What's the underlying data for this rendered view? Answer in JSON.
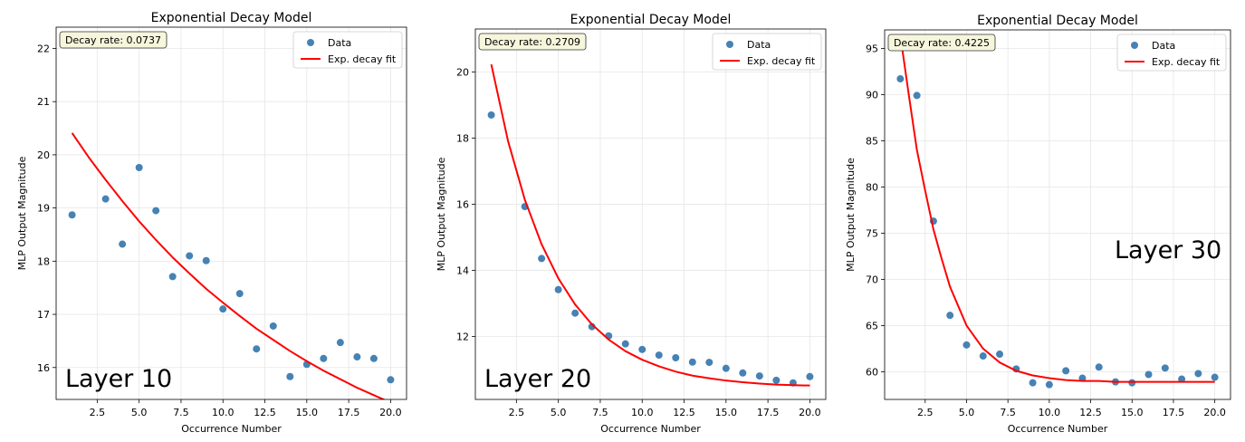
{
  "chart_data": [
    {
      "type": "scatter",
      "title": "Exponential Decay Model",
      "xlabel": "Occurrence Number",
      "ylabel": "MLP Output Magnitude",
      "xlim": [
        0.05,
        20.95
      ],
      "ylim": [
        15.4,
        22.4
      ],
      "xticks": [
        2.5,
        5.0,
        7.5,
        10.0,
        12.5,
        15.0,
        17.5,
        20.0
      ],
      "xtick_labels": [
        "2.5",
        "5.0",
        "7.5",
        "10.0",
        "12.5",
        "15.0",
        "17.5",
        "20.0"
      ],
      "yticks": [
        16,
        17,
        18,
        19,
        20,
        21,
        22
      ],
      "ytick_labels": [
        "16",
        "17",
        "18",
        "19",
        "20",
        "21",
        "22"
      ],
      "grid": true,
      "legend_position": "top-right",
      "annotation": "Decay rate: 0.0737",
      "overlay_label": "Layer 10",
      "overlay_position": "bottom-left",
      "series": [
        {
          "name": "Data",
          "kind": "scatter",
          "color": "#4682b4",
          "x": [
            1,
            3,
            4,
            5,
            6,
            7,
            8,
            9,
            10,
            11,
            12,
            13,
            14,
            15,
            16,
            17,
            18,
            19,
            20
          ],
          "y": [
            18.87,
            19.17,
            18.32,
            19.76,
            18.95,
            17.71,
            18.1,
            18.01,
            17.1,
            17.39,
            16.35,
            16.78,
            15.83,
            16.06,
            16.17,
            16.47,
            16.2,
            16.17,
            15.77
          ]
        },
        {
          "name": "Exp. decay fit",
          "kind": "line",
          "color": "#ff0000",
          "x": [
            1,
            2,
            3,
            4,
            5,
            6,
            7,
            8,
            9,
            10,
            11,
            12,
            13,
            14,
            15,
            16,
            17,
            18,
            19,
            20
          ],
          "y": [
            20.41,
            19.95,
            19.53,
            19.13,
            18.75,
            18.4,
            18.07,
            17.77,
            17.48,
            17.22,
            16.97,
            16.73,
            16.52,
            16.31,
            16.12,
            15.94,
            15.78,
            15.62,
            15.48,
            15.34
          ]
        }
      ]
    },
    {
      "type": "scatter",
      "title": "Exponential Decay Model",
      "xlabel": "Occurrence Number",
      "ylabel": "MLP Output Magnitude",
      "xlim": [
        0.05,
        20.95
      ],
      "ylim": [
        10.1,
        21.3
      ],
      "xticks": [
        2.5,
        5.0,
        7.5,
        10.0,
        12.5,
        15.0,
        17.5,
        20.0
      ],
      "xtick_labels": [
        "2.5",
        "5.0",
        "7.5",
        "10.0",
        "12.5",
        "15.0",
        "17.5",
        "20.0"
      ],
      "yticks": [
        12,
        14,
        16,
        18,
        20
      ],
      "ytick_labels": [
        "12",
        "14",
        "16",
        "18",
        "20"
      ],
      "grid": true,
      "legend_position": "top-right",
      "annotation": "Decay rate: 0.2709",
      "overlay_label": "Layer 20",
      "overlay_position": "bottom-left",
      "series": [
        {
          "name": "Data",
          "kind": "scatter",
          "color": "#4682b4",
          "x": [
            1,
            3,
            4,
            5,
            6,
            7,
            8,
            9,
            10,
            11,
            12,
            13,
            14,
            15,
            16,
            17,
            18,
            19,
            20
          ],
          "y": [
            18.7,
            15.93,
            14.36,
            13.42,
            12.71,
            12.3,
            12.02,
            11.78,
            11.61,
            11.44,
            11.36,
            11.23,
            11.22,
            11.04,
            10.9,
            10.81,
            10.68,
            10.6,
            10.79
          ]
        },
        {
          "name": "Exp. decay fit",
          "kind": "line",
          "color": "#ff0000",
          "x": [
            1,
            2,
            3,
            4,
            5,
            6,
            7,
            8,
            9,
            10,
            11,
            12,
            13,
            14,
            15,
            16,
            17,
            18,
            19,
            20
          ],
          "y": [
            20.23,
            17.91,
            16.14,
            14.79,
            13.76,
            12.97,
            12.37,
            11.91,
            11.56,
            11.3,
            11.1,
            10.94,
            10.82,
            10.74,
            10.67,
            10.62,
            10.58,
            10.55,
            10.53,
            10.52
          ]
        }
      ]
    },
    {
      "type": "scatter",
      "title": "Exponential Decay Model",
      "xlabel": "Occurrence Number",
      "ylabel": "MLP Output Magnitude",
      "xlim": [
        0.05,
        20.95
      ],
      "ylim": [
        57.0,
        97.0
      ],
      "xticks": [
        2.5,
        5.0,
        7.5,
        10.0,
        12.5,
        15.0,
        17.5,
        20.0
      ],
      "xtick_labels": [
        "2.5",
        "5.0",
        "7.5",
        "10.0",
        "12.5",
        "15.0",
        "17.5",
        "20.0"
      ],
      "yticks": [
        60,
        65,
        70,
        75,
        80,
        85,
        90,
        95
      ],
      "ytick_labels": [
        "60",
        "65",
        "70",
        "75",
        "80",
        "85",
        "90",
        "95"
      ],
      "grid": true,
      "legend_position": "top-right",
      "annotation": "Decay rate: 0.4225",
      "overlay_label": "Layer 30",
      "overlay_position": "right",
      "series": [
        {
          "name": "Data",
          "kind": "scatter",
          "color": "#4682b4",
          "x": [
            1,
            2,
            3,
            4,
            5,
            6,
            7,
            8,
            9,
            10,
            11,
            12,
            13,
            14,
            15,
            16,
            17,
            18,
            19,
            20
          ],
          "y": [
            91.7,
            89.9,
            76.3,
            66.1,
            62.9,
            61.7,
            61.9,
            60.3,
            58.8,
            58.6,
            60.1,
            59.3,
            60.5,
            58.9,
            58.8,
            59.7,
            60.4,
            59.2,
            59.8,
            59.4
          ]
        },
        {
          "name": "Exp. decay fit",
          "kind": "line",
          "color": "#ff0000",
          "x": [
            1,
            1.5,
            2,
            2.5,
            3,
            3.5,
            4,
            5,
            6,
            7,
            8,
            9,
            10,
            11,
            12,
            13,
            14,
            15,
            16,
            17,
            18,
            19,
            20
          ],
          "y": [
            96.4,
            90.1,
            84.0,
            79.6,
            75.4,
            72.2,
            69.2,
            65.0,
            62.5,
            61.0,
            60.1,
            59.6,
            59.3,
            59.1,
            59.0,
            59.0,
            58.9,
            58.9,
            58.9,
            58.9,
            58.9,
            58.9,
            58.9
          ]
        }
      ]
    }
  ]
}
